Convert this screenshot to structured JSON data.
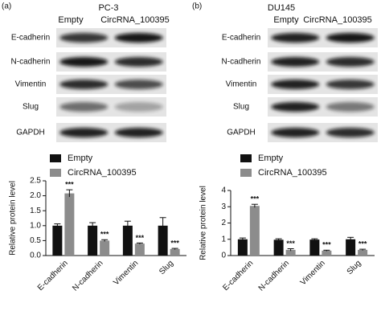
{
  "chart_data": [
    {
      "type": "bar",
      "panel_label": "(a)",
      "cell_line": "PC-3",
      "lanes": [
        "Empty",
        "CircRNA_100395"
      ],
      "blot_rows": [
        "E-cadherin",
        "N-cadherin",
        "Vimentin",
        "Slug",
        "GAPDH"
      ],
      "y_label": "Relative protein level",
      "categories": [
        "E-cadherin",
        "N-cadherin",
        "Vimentin",
        "Slug"
      ],
      "series": [
        {
          "name": "Empty",
          "color": "#111111",
          "values": [
            1.0,
            1.0,
            1.0,
            1.0
          ],
          "errors": [
            0.06,
            0.1,
            0.15,
            0.27
          ]
        },
        {
          "name": "CircRNA_100395",
          "color": "#8c8c8c",
          "values": [
            2.08,
            0.5,
            0.4,
            0.22
          ],
          "errors": [
            0.12,
            0.03,
            0.02,
            0.02
          ],
          "significance": [
            "***",
            "***",
            "***",
            "***"
          ]
        }
      ],
      "ylim": [
        0,
        2.5
      ],
      "yticks": [
        {
          "value": 0,
          "label": "0.0"
        },
        0.5,
        {
          "value": 1,
          "label": "1.0"
        },
        1.5,
        {
          "value": 2,
          "label": "2.0"
        },
        2.5
      ]
    },
    {
      "type": "bar",
      "panel_label": "(b)",
      "cell_line": "DU145",
      "lanes": [
        "Empty",
        "CircRNA_100395"
      ],
      "blot_rows": [
        "E-cadherin",
        "N-cadherin",
        "Vimentin",
        "Slug",
        "GAPDH"
      ],
      "y_label": "Relative protein level",
      "categories": [
        "E-cadherin",
        "N-cadherin",
        "Vimentin",
        "Slug"
      ],
      "series": [
        {
          "name": "Empty",
          "color": "#111111",
          "values": [
            1.0,
            0.97,
            0.98,
            1.0
          ],
          "errors": [
            0.08,
            0.06,
            0.05,
            0.12
          ]
        },
        {
          "name": "CircRNA_100395",
          "color": "#8c8c8c",
          "values": [
            3.05,
            0.35,
            0.3,
            0.35
          ],
          "errors": [
            0.1,
            0.07,
            0.03,
            0.04
          ],
          "significance": [
            "***",
            "***",
            "***",
            "***"
          ]
        }
      ],
      "ylim": [
        0,
        4
      ],
      "yticks": [
        0,
        1,
        2,
        3,
        4
      ]
    }
  ]
}
